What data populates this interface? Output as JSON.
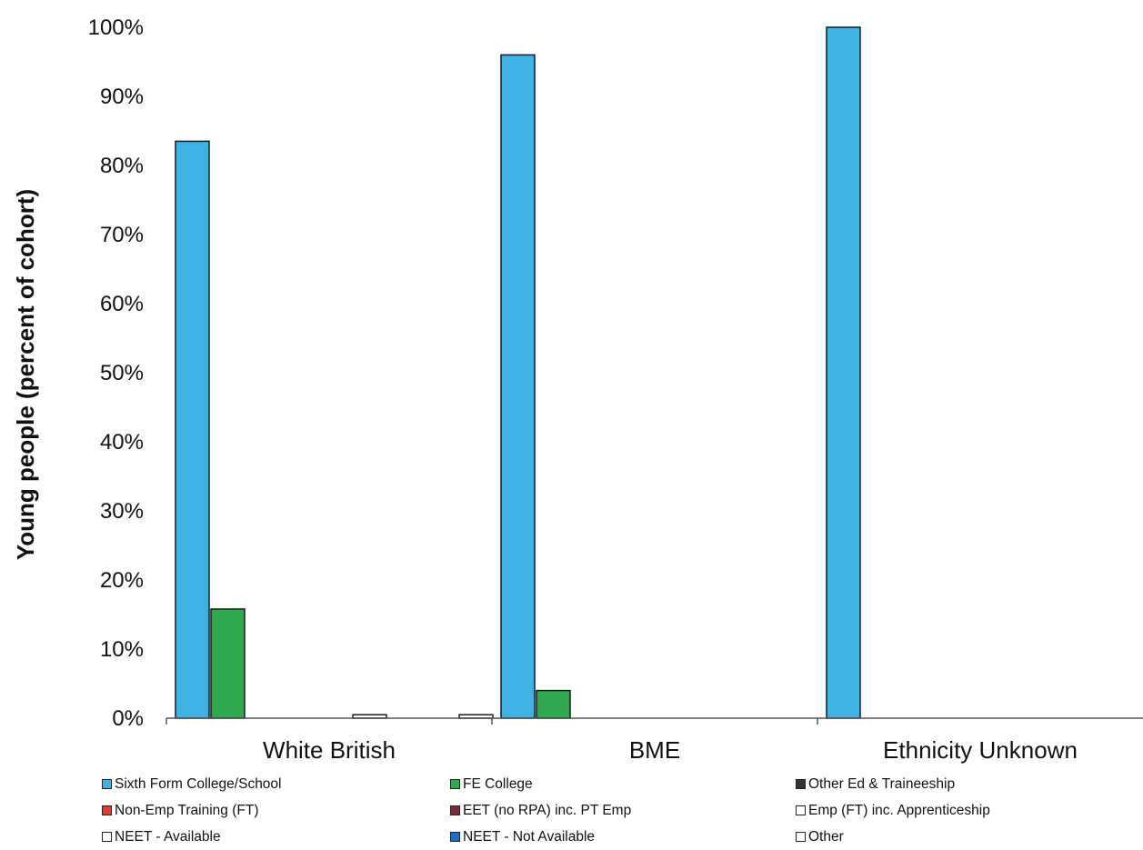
{
  "chart_data": {
    "type": "bar",
    "title": "",
    "ylabel": "Young people (percent of cohort)",
    "xlabel": "",
    "ylim": [
      0,
      100
    ],
    "yticks": [
      "0%",
      "10%",
      "20%",
      "30%",
      "40%",
      "50%",
      "60%",
      "70%",
      "80%",
      "90%",
      "100%"
    ],
    "grid": false,
    "legend_position": "bottom",
    "categories": [
      "White British",
      "BME",
      "Ethnicity Unknown"
    ],
    "series": [
      {
        "name": "Sixth Form College/School",
        "color": "#3fb1e3",
        "values": [
          83.5,
          96.0,
          100.0
        ]
      },
      {
        "name": "FE College",
        "color": "#2fa84f",
        "values": [
          15.8,
          4.0,
          0
        ]
      },
      {
        "name": "Other Ed & Traineeship",
        "color": "#333333",
        "values": [
          0,
          0,
          0
        ]
      },
      {
        "name": "Non-Emp Training (FT)",
        "color": "#e53b2c",
        "values": [
          0,
          0,
          0
        ]
      },
      {
        "name": "EET (no RPA) inc. PT Emp",
        "color": "#7b2a3a",
        "values": [
          0,
          0,
          0
        ]
      },
      {
        "name": "Emp (FT) inc. Apprenticeship",
        "color": "#ffffff",
        "values": [
          0.5,
          0,
          0
        ]
      },
      {
        "name": "NEET - Available",
        "color": "#ffffff",
        "values": [
          0,
          0,
          0
        ]
      },
      {
        "name": "NEET - Not Available",
        "color": "#1f6fc9",
        "values": [
          0,
          0,
          0
        ]
      },
      {
        "name": "Other",
        "color": "#ffffff",
        "values": [
          0.5,
          0,
          0
        ]
      }
    ]
  }
}
